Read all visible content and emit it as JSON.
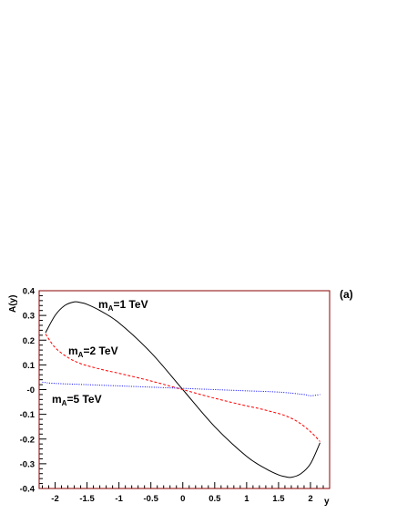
{
  "chart_data": {
    "type": "line",
    "panel_label": "(a)",
    "xlabel": "y",
    "ylabel": "A(y)",
    "xlim": [
      -2.25,
      2.3
    ],
    "ylim": [
      -0.4,
      0.4
    ],
    "x_ticks": [
      -2,
      -1.5,
      -1,
      -0.5,
      0,
      0.5,
      1,
      1.5,
      2
    ],
    "x_tick_labels": [
      "-2",
      "-1.5",
      "-1",
      "-0.5",
      "0",
      "0.5",
      "1",
      "1.5",
      "2"
    ],
    "y_ticks": [
      -0.4,
      -0.3,
      -0.2,
      -0.1,
      0,
      0.1,
      0.2,
      0.3,
      0.4
    ],
    "y_tick_labels": [
      "-0.4",
      "-0.3",
      "-0.2",
      "-0.1",
      "-0",
      "0.1",
      "0.2",
      "0.3",
      "0.4"
    ],
    "frame_color": "#8b0000",
    "series": [
      {
        "label_main": "m",
        "label_sub": "A",
        "label_rest": "=1 TeV",
        "color": "#000000",
        "dash": "",
        "x": [
          -2.15,
          -2.0,
          -1.85,
          -1.7,
          -1.6,
          -1.5,
          -1.3,
          -1.0,
          -0.5,
          0.0,
          0.5,
          1.0,
          1.3,
          1.5,
          1.6,
          1.7,
          1.85,
          2.0,
          2.15
        ],
        "y": [
          0.23,
          0.3,
          0.34,
          0.355,
          0.352,
          0.345,
          0.32,
          0.27,
          0.15,
          0.0,
          -0.15,
          -0.27,
          -0.32,
          -0.345,
          -0.352,
          -0.355,
          -0.34,
          -0.3,
          -0.215
        ]
      },
      {
        "label_main": "m",
        "label_sub": "A",
        "label_rest": "=2 TeV",
        "color": "#ff0000",
        "dash": "3,2",
        "x": [
          -2.15,
          -2.0,
          -1.8,
          -1.6,
          -1.4,
          -1.2,
          -1.0,
          -0.5,
          0.0,
          0.5,
          1.0,
          1.2,
          1.4,
          1.6,
          1.8,
          2.0,
          2.15
        ],
        "y": [
          0.225,
          0.17,
          0.13,
          0.105,
          0.09,
          0.077,
          0.066,
          0.035,
          0.0,
          -0.035,
          -0.066,
          -0.077,
          -0.09,
          -0.105,
          -0.13,
          -0.17,
          -0.21
        ]
      },
      {
        "label_main": "m",
        "label_sub": "A",
        "label_rest": "=5 TeV",
        "color": "#0000ff",
        "dash": "1,1.5",
        "x": [
          -2.2,
          -2.0,
          -1.5,
          -1.0,
          -0.5,
          0.0,
          0.5,
          1.0,
          1.5,
          1.9,
          2.0,
          2.15
        ],
        "y": [
          0.03,
          0.025,
          0.02,
          0.015,
          0.01,
          0.005,
          0.0,
          -0.005,
          -0.01,
          -0.02,
          -0.025,
          -0.02
        ]
      }
    ]
  }
}
